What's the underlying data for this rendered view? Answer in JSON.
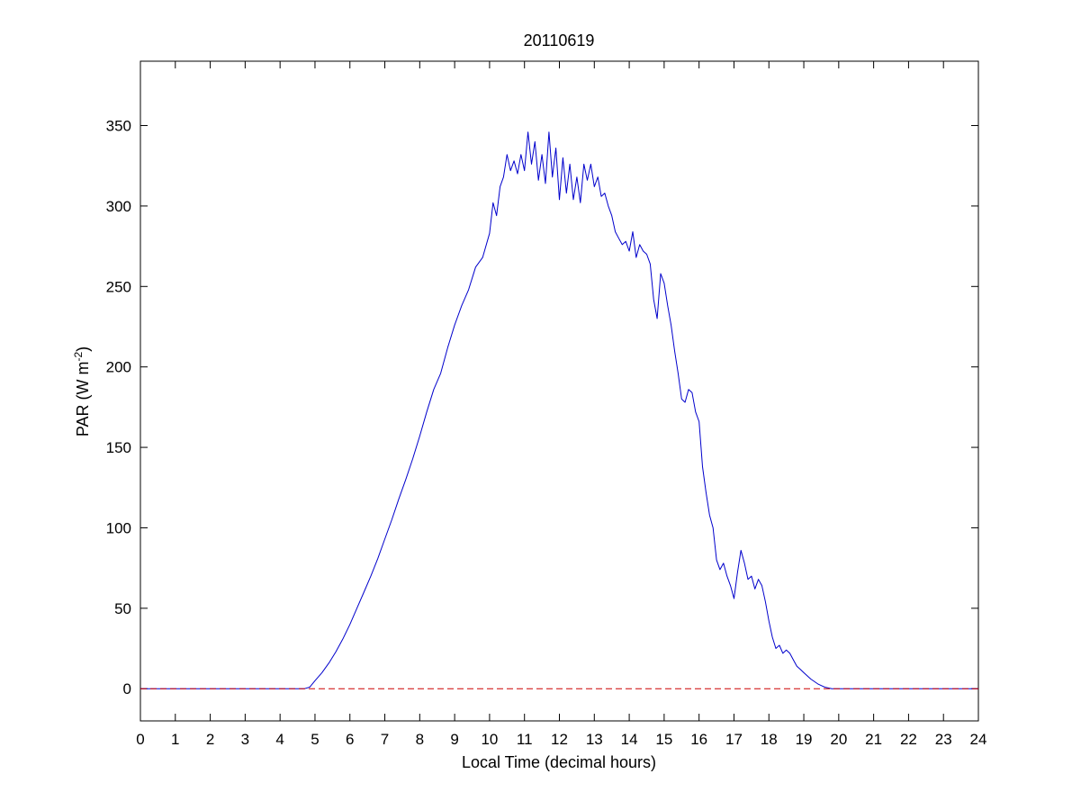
{
  "chart_data": {
    "type": "line",
    "title": "20110619",
    "xlabel": "Local Time (decimal hours)",
    "ylabel_main": "PAR (W m",
    "ylabel_sup": "-2",
    "ylabel_close": ")",
    "xlim": [
      0,
      24
    ],
    "ylim": [
      -20,
      390
    ],
    "xticks": [
      0,
      1,
      2,
      3,
      4,
      5,
      6,
      7,
      8,
      9,
      10,
      11,
      12,
      13,
      14,
      15,
      16,
      17,
      18,
      19,
      20,
      21,
      22,
      23,
      24
    ],
    "yticks": [
      0,
      50,
      100,
      150,
      200,
      250,
      300,
      350
    ],
    "grid": false,
    "colors": {
      "series": "#0000cc",
      "baseline": "#cc0000",
      "axes": "#000000",
      "background": "#ffffff"
    },
    "series": [
      {
        "style": "solid",
        "x": [
          0,
          4.5,
          4.7,
          4.85,
          5.0,
          5.2,
          5.4,
          5.6,
          5.8,
          6.0,
          6.2,
          6.4,
          6.6,
          6.8,
          7.0,
          7.2,
          7.4,
          7.6,
          7.8,
          8.0,
          8.2,
          8.4,
          8.6,
          8.8,
          9.0,
          9.2,
          9.4,
          9.6,
          9.8,
          10.0,
          10.1,
          10.2,
          10.3,
          10.4,
          10.5,
          10.6,
          10.7,
          10.8,
          10.9,
          11.0,
          11.1,
          11.2,
          11.3,
          11.4,
          11.5,
          11.6,
          11.7,
          11.8,
          11.9,
          12.0,
          12.1,
          12.2,
          12.3,
          12.4,
          12.5,
          12.6,
          12.7,
          12.8,
          12.9,
          13.0,
          13.1,
          13.2,
          13.3,
          13.4,
          13.5,
          13.6,
          13.7,
          13.8,
          13.9,
          14.0,
          14.1,
          14.2,
          14.3,
          14.4,
          14.5,
          14.6,
          14.7,
          14.8,
          14.9,
          15.0,
          15.1,
          15.2,
          15.3,
          15.4,
          15.5,
          15.6,
          15.7,
          15.8,
          15.9,
          16.0,
          16.1,
          16.2,
          16.3,
          16.4,
          16.5,
          16.6,
          16.7,
          16.8,
          16.9,
          17.0,
          17.1,
          17.2,
          17.3,
          17.4,
          17.5,
          17.6,
          17.7,
          17.8,
          17.9,
          18.0,
          18.1,
          18.2,
          18.3,
          18.4,
          18.5,
          18.6,
          18.7,
          18.8,
          18.9,
          19.0,
          19.2,
          19.4,
          19.6,
          19.8,
          20.0,
          24
        ],
        "y": [
          0,
          0,
          0,
          1,
          5,
          10,
          16,
          23,
          31,
          40,
          50,
          60,
          70,
          81,
          93,
          105,
          118,
          130,
          143,
          157,
          172,
          186,
          196,
          212,
          226,
          238,
          248,
          262,
          268,
          283,
          302,
          294,
          312,
          318,
          332,
          322,
          328,
          320,
          332,
          322,
          346,
          326,
          340,
          316,
          332,
          314,
          346,
          318,
          336,
          304,
          330,
          308,
          326,
          304,
          318,
          302,
          326,
          316,
          326,
          312,
          318,
          306,
          308,
          300,
          294,
          284,
          280,
          276,
          278,
          272,
          284,
          268,
          276,
          272,
          270,
          264,
          242,
          230,
          258,
          252,
          238,
          226,
          210,
          196,
          180,
          178,
          186,
          184,
          172,
          166,
          138,
          122,
          108,
          100,
          80,
          74,
          78,
          70,
          64,
          56,
          72,
          86,
          78,
          68,
          70,
          62,
          68,
          64,
          54,
          42,
          32,
          25,
          27,
          22,
          24,
          22,
          18,
          14,
          12,
          10,
          6,
          3,
          1,
          0,
          0,
          0
        ]
      },
      {
        "style": "dashed",
        "x": [
          0,
          24
        ],
        "y": [
          0,
          0
        ]
      }
    ]
  }
}
